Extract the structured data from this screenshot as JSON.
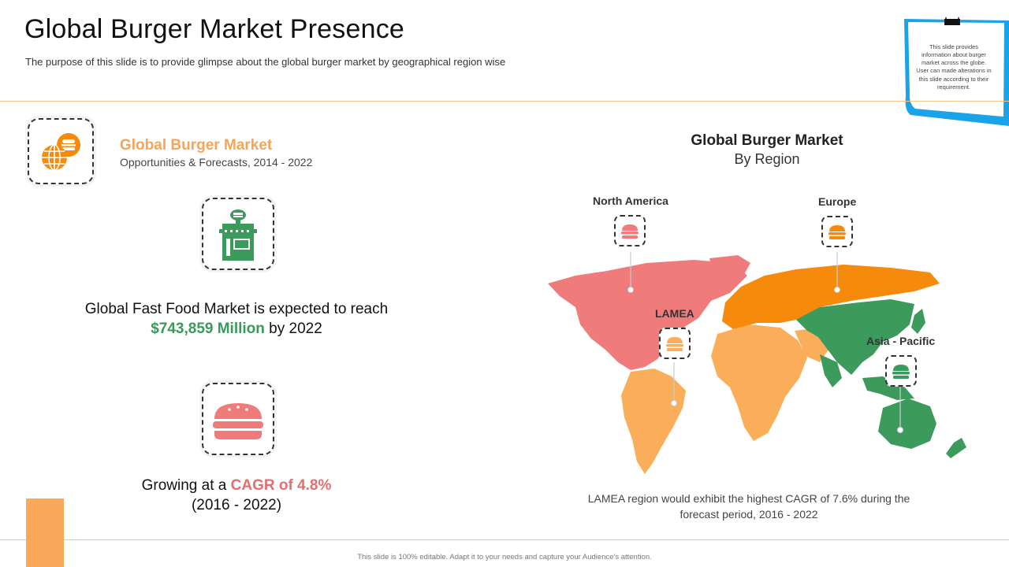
{
  "header": {
    "title": "Global Burger Market Presence",
    "subtitle": "The purpose of this slide is to provide glimpse about the global burger market by geographical region wise"
  },
  "note": {
    "text": "This slide provides information about burger market across the globe. User can made alterations in this slide according to their requirement."
  },
  "market": {
    "title": "Global Burger Market",
    "subtitle": "Opportunities & Forecasts, 2014 - 2022"
  },
  "fast_food": {
    "line1": "Global Fast Food Market is expected to reach",
    "value": "$743,859 Million",
    "suffix": "by 2022"
  },
  "growth": {
    "prefix": "Growing at a",
    "value": "CAGR of 4.8%",
    "period": "(2016 - 2022)"
  },
  "map": {
    "title": "Global Burger Market",
    "subtitle": "By Region",
    "regions": {
      "north_america": "North America",
      "europe": "Europe",
      "lamea": "LAMEA",
      "asia_pacific": "Asia - Pacific"
    },
    "note": "LAMEA region would exhibit the highest CAGR of 7.6% during the forecast period, 2016 - 2022"
  },
  "footer": {
    "text": "This slide is 100% editable. Adapt it to your needs and capture your Audience's attention."
  },
  "colors": {
    "north_america": "#ef7b7b",
    "europe": "#f58a0b",
    "lamea": "#fbae5a",
    "asia_pacific": "#3b9a5c",
    "accent": "#f9a959",
    "note_border": "#1aa3e8"
  }
}
